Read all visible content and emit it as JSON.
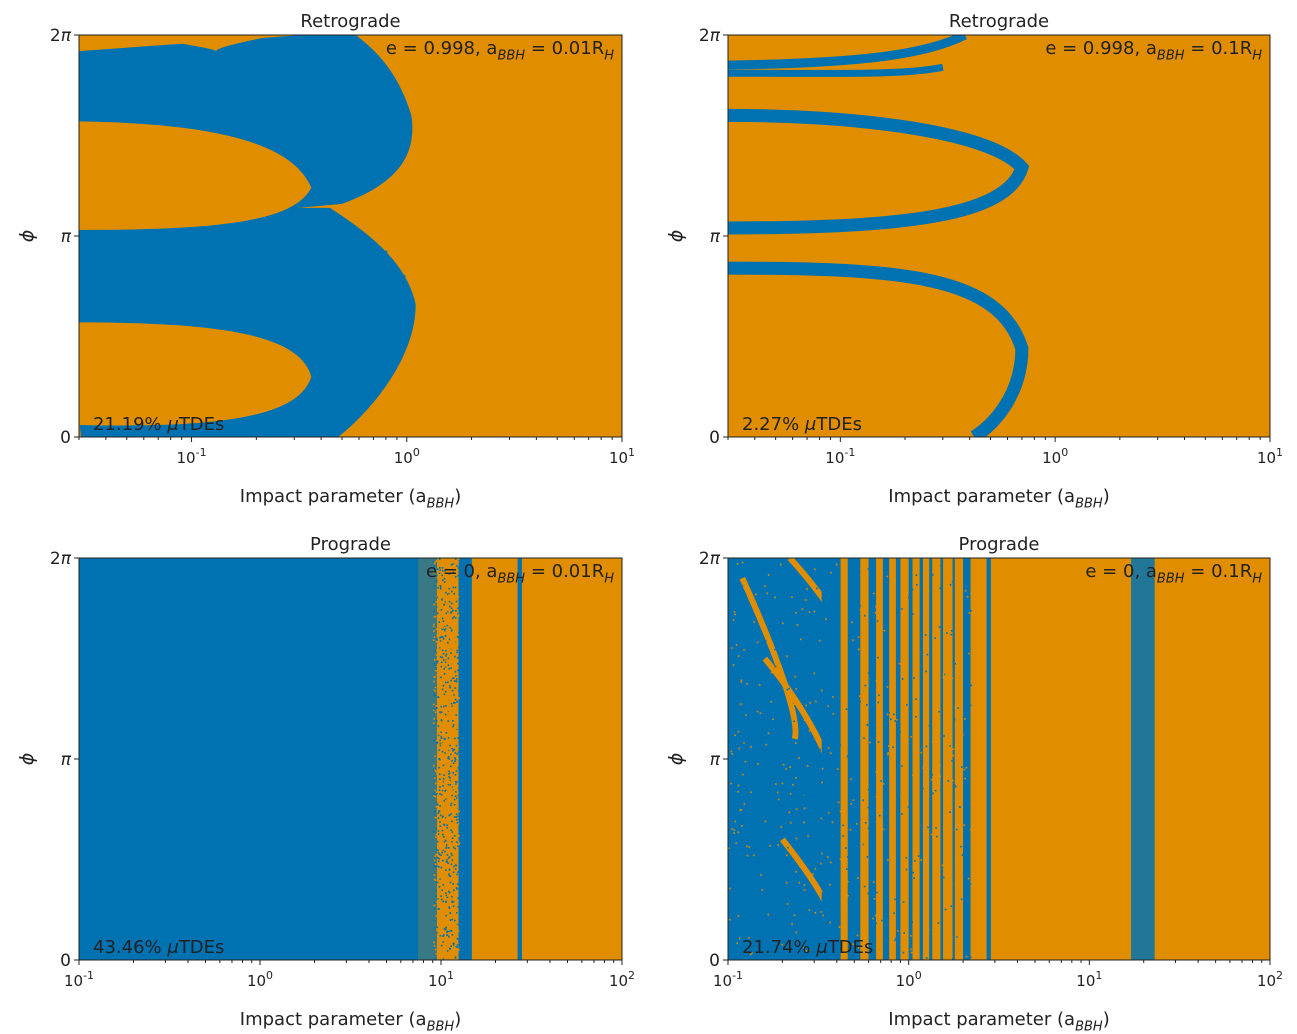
{
  "colors": {
    "mutde": "#0072B2",
    "other": "#E08E00",
    "axis": "#222222"
  },
  "chart_data": [
    {
      "type": "heatmap",
      "title": "Retrograde",
      "annotation": "e = 0.998, a_BBH = 0.01R_H",
      "fraction_label": "21.19% μTDEs",
      "mutde_percent": 21.19,
      "xlabel": "Impact parameter (a_BBH)",
      "ylabel": "ϕ",
      "xscale": "log",
      "xlim": [
        0.03,
        10
      ],
      "ylim": [
        "0",
        "2π"
      ],
      "xticks": [
        "10^-1",
        "10^0",
        "10^1"
      ],
      "yticks": [
        "0",
        "π",
        "2π"
      ]
    },
    {
      "type": "heatmap",
      "title": "Retrograde",
      "annotation": "e = 0.998, a_BBH = 0.1R_H",
      "fraction_label": "2.27% μTDEs",
      "mutde_percent": 2.27,
      "xlabel": "Impact parameter (a_BBH)",
      "ylabel": "ϕ",
      "xscale": "log",
      "xlim": [
        0.03,
        10
      ],
      "ylim": [
        "0",
        "2π"
      ],
      "xticks": [
        "10^-1",
        "10^0",
        "10^1"
      ],
      "yticks": [
        "0",
        "π",
        "2π"
      ]
    },
    {
      "type": "heatmap",
      "title": "Prograde",
      "annotation": "e = 0, a_BBH = 0.01R_H",
      "fraction_label": "43.46% μTDEs",
      "mutde_percent": 43.46,
      "xlabel": "Impact parameter (a_BBH)",
      "ylabel": "ϕ",
      "xscale": "log",
      "xlim": [
        0.1,
        100
      ],
      "ylim": [
        "0",
        "2π"
      ],
      "xticks": [
        "10^-1",
        "10^0",
        "10^1",
        "10^2"
      ],
      "yticks": [
        "0",
        "π",
        "2π"
      ]
    },
    {
      "type": "heatmap",
      "title": "Prograde",
      "annotation": "e = 0, a_BBH = 0.1R_H",
      "fraction_label": "21.74% μTDEs",
      "mutde_percent": 21.74,
      "xlabel": "Impact parameter (a_BBH)",
      "ylabel": "ϕ",
      "xscale": "log",
      "xlim": [
        0.1,
        100
      ],
      "ylim": [
        "0",
        "2π"
      ],
      "xticks": [
        "10^-1",
        "10^0",
        "10^1",
        "10^2"
      ],
      "yticks": [
        "0",
        "π",
        "2π"
      ]
    }
  ]
}
